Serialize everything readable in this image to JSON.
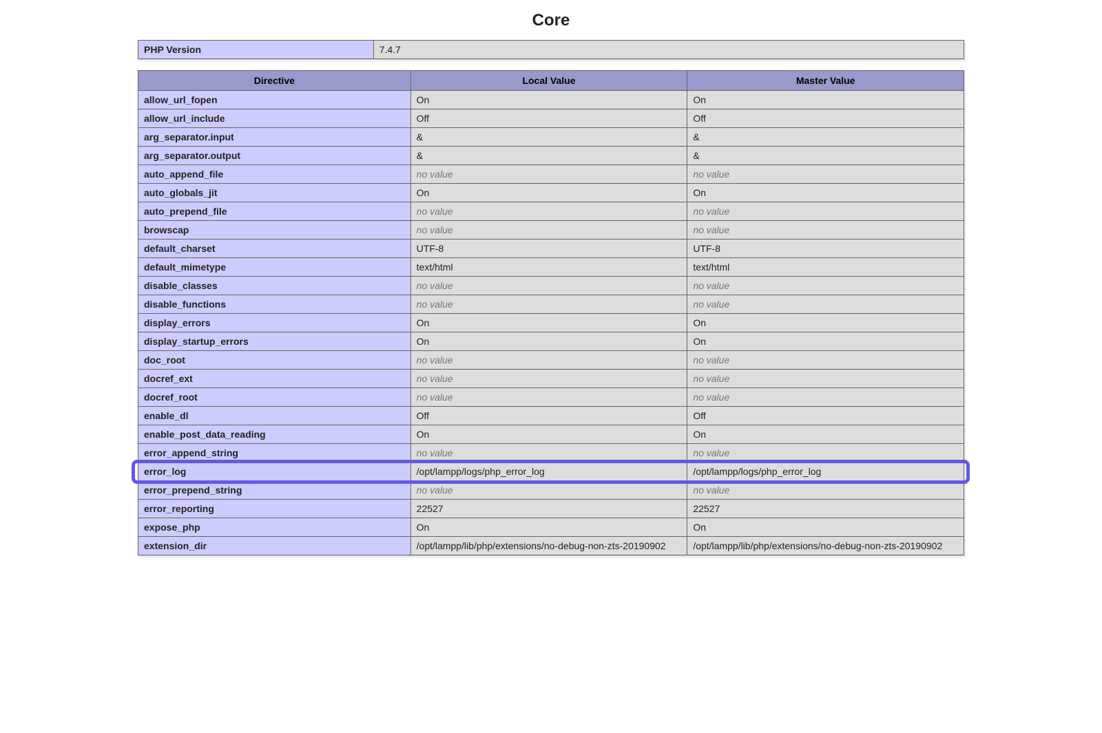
{
  "section_title": "Core",
  "version_table": {
    "label": "PHP Version",
    "value": "7.4.7"
  },
  "headers": {
    "directive": "Directive",
    "local": "Local Value",
    "master": "Master Value"
  },
  "no_value_text": "no value",
  "highlight_directive": "error_log",
  "colors": {
    "header_bg": "#9999cc",
    "label_bg": "#ccccff",
    "value_bg": "#dddddd",
    "border": "#666666",
    "highlight_border": "#6458e6",
    "novalue_text": "#777777",
    "page_bg": "#ffffff"
  },
  "directives": [
    {
      "name": "allow_url_fopen",
      "local": "On",
      "master": "On"
    },
    {
      "name": "allow_url_include",
      "local": "Off",
      "master": "Off"
    },
    {
      "name": "arg_separator.input",
      "local": "&",
      "master": "&"
    },
    {
      "name": "arg_separator.output",
      "local": "&",
      "master": "&"
    },
    {
      "name": "auto_append_file",
      "local": null,
      "master": null
    },
    {
      "name": "auto_globals_jit",
      "local": "On",
      "master": "On"
    },
    {
      "name": "auto_prepend_file",
      "local": null,
      "master": null
    },
    {
      "name": "browscap",
      "local": null,
      "master": null
    },
    {
      "name": "default_charset",
      "local": "UTF-8",
      "master": "UTF-8"
    },
    {
      "name": "default_mimetype",
      "local": "text/html",
      "master": "text/html"
    },
    {
      "name": "disable_classes",
      "local": null,
      "master": null
    },
    {
      "name": "disable_functions",
      "local": null,
      "master": null
    },
    {
      "name": "display_errors",
      "local": "On",
      "master": "On"
    },
    {
      "name": "display_startup_errors",
      "local": "On",
      "master": "On"
    },
    {
      "name": "doc_root",
      "local": null,
      "master": null
    },
    {
      "name": "docref_ext",
      "local": null,
      "master": null
    },
    {
      "name": "docref_root",
      "local": null,
      "master": null
    },
    {
      "name": "enable_dl",
      "local": "Off",
      "master": "Off"
    },
    {
      "name": "enable_post_data_reading",
      "local": "On",
      "master": "On"
    },
    {
      "name": "error_append_string",
      "local": null,
      "master": null
    },
    {
      "name": "error_log",
      "local": "/opt/lampp/logs/php_error_log",
      "master": "/opt/lampp/logs/php_error_log"
    },
    {
      "name": "error_prepend_string",
      "local": null,
      "master": null
    },
    {
      "name": "error_reporting",
      "local": "22527",
      "master": "22527"
    },
    {
      "name": "expose_php",
      "local": "On",
      "master": "On"
    },
    {
      "name": "extension_dir",
      "local": "/opt/lampp/lib/php/extensions/no-debug-non-zts-20190902",
      "master": "/opt/lampp/lib/php/extensions/no-debug-non-zts-20190902"
    }
  ]
}
